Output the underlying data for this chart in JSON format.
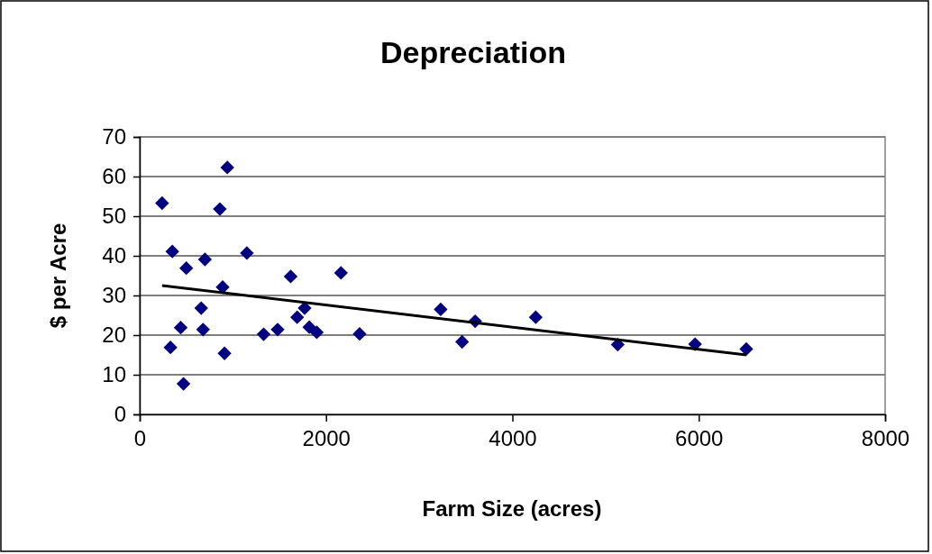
{
  "chart_data": {
    "type": "scatter",
    "title": "Depreciation",
    "xlabel": "Farm Size (acres)",
    "ylabel": "$ per Acre",
    "xlim": [
      0,
      8000
    ],
    "xticks": [
      0,
      2000,
      4000,
      6000,
      8000
    ],
    "ylim": [
      0,
      70
    ],
    "yticks": [
      0,
      10,
      20,
      30,
      40,
      50,
      60,
      70
    ],
    "grid": "y",
    "marker": "diamond",
    "series": [
      {
        "color": "#000080",
        "x": [
          240,
          940,
          860,
          350,
          1150,
          700,
          500,
          2160,
          1620,
          890,
          660,
          1770,
          3230,
          1690,
          3600,
          440,
          680,
          1480,
          1820,
          1900,
          1330,
          2360,
          3460,
          330,
          910,
          470,
          4250,
          5130,
          5960,
          6510
        ],
        "values": [
          53.3,
          62.3,
          51.8,
          41.1,
          40.7,
          39.1,
          36.9,
          35.7,
          34.8,
          32.1,
          26.8,
          26.8,
          26.5,
          24.5,
          23.5,
          21.9,
          21.4,
          21.4,
          22,
          20.7,
          20.2,
          20.3,
          18.3,
          16.9,
          15.4,
          7.7,
          24.5,
          17.6,
          17.7,
          16.5
        ]
      },
      {
        "type": "line",
        "color": "#000000",
        "marker": "none",
        "x": [
          240,
          6510
        ],
        "values": [
          32.5,
          15
        ]
      }
    ]
  }
}
